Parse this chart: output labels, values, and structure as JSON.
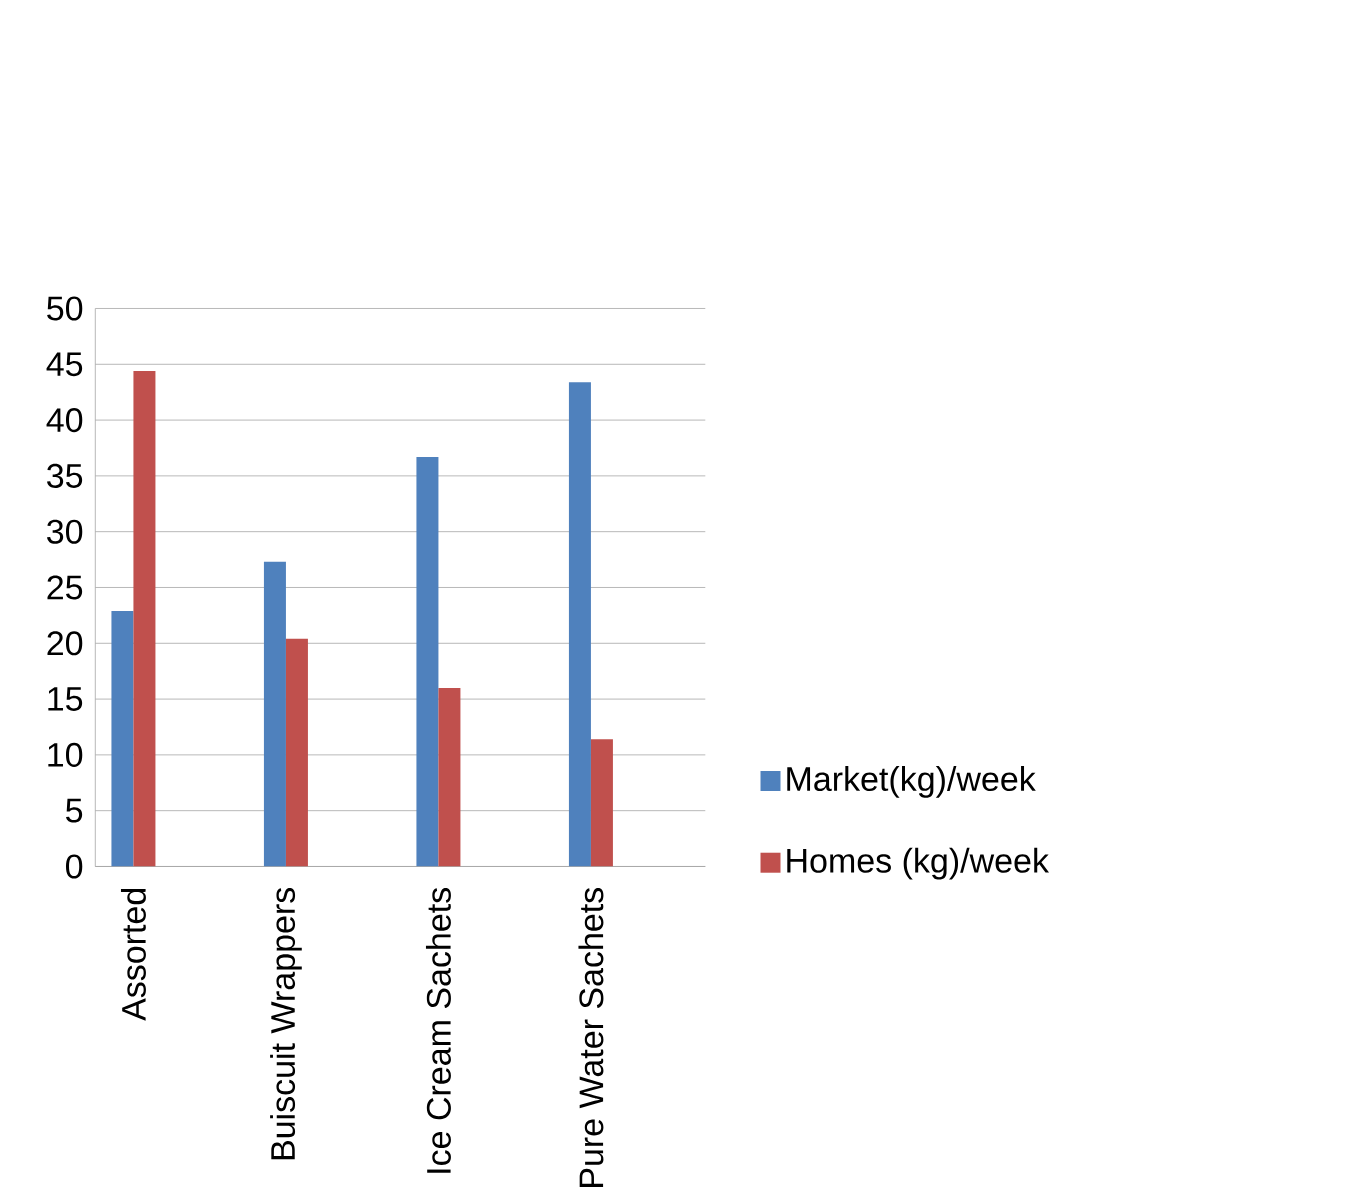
{
  "chart_data": {
    "type": "bar",
    "categories": [
      "Assorted",
      null,
      "Buiscuit Wrappers",
      null,
      "Ice Cream Sachets",
      null,
      "Pure Water Sachets",
      null
    ],
    "series": [
      {
        "name": "Market(kg)/week",
        "color": "#4f81bd",
        "values": [
          22.9,
          null,
          27.3,
          null,
          36.7,
          null,
          43.4,
          null
        ]
      },
      {
        "name": "Homes (kg)/week",
        "color": "#c0504d",
        "values": [
          44.4,
          null,
          20.4,
          null,
          16.0,
          null,
          11.4,
          null
        ]
      }
    ],
    "ylim": [
      0,
      50
    ],
    "yticks": [
      0,
      5,
      10,
      15,
      20,
      25,
      30,
      35,
      40,
      45,
      50
    ],
    "grid": "y",
    "legend": "right"
  }
}
